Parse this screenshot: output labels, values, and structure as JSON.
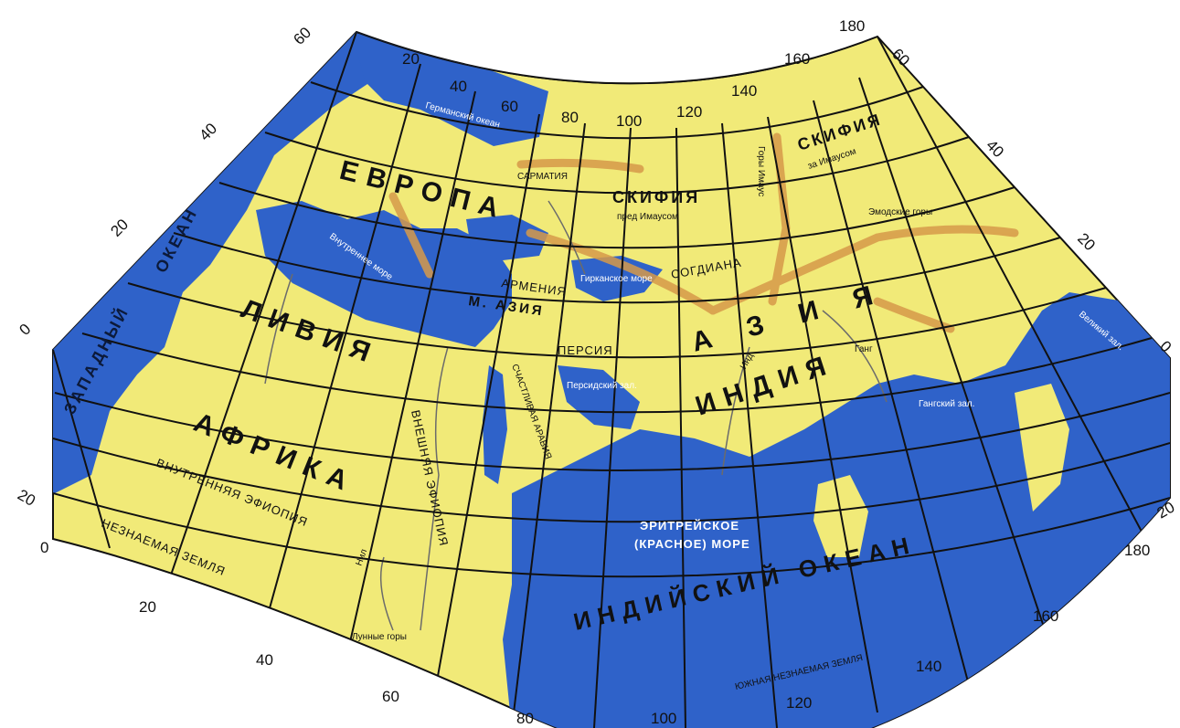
{
  "colors": {
    "land": "#f1ea78",
    "sea": "#2f62c9",
    "mountains": "#d69a4a",
    "rivers": "#6b6b6b",
    "grid": "#111111"
  },
  "scale": {
    "lon_top": [
      "20",
      "40",
      "60",
      "80",
      "100",
      "120",
      "140",
      "160",
      "180"
    ],
    "lon_bottom": [
      "0",
      "20",
      "40",
      "60",
      "80",
      "100",
      "120",
      "140",
      "160",
      "180"
    ],
    "lat_left": [
      "60",
      "40",
      "20",
      "0",
      "20"
    ],
    "lat_right": [
      "60",
      "40",
      "20",
      "0",
      "20"
    ]
  },
  "regions": {
    "europe": "ЕВРОПА",
    "libya": "ЛИВИЯ",
    "africa": "АФРИКА",
    "asia": "АЗИЯ",
    "india": "ИНДИЯ",
    "scythia1": "СКИФИЯ",
    "scythia1_sub": "пред Имаусом",
    "scythia2": "СКИФИЯ",
    "scythia2_sub": "за Имаусом",
    "sarmatia": "САРМАТИЯ",
    "armenia": "АРМЕНИЯ",
    "sogdiana": "СОГДИАНА",
    "persia": "ПЕРСИЯ",
    "asia_minor": "М. АЗИЯ",
    "happy_arabia": "СЧАСТЛИВАЯ АРАВИЯ",
    "inner_ethiopia": "ВНУТРЕННЯЯ ЭФИОПИЯ",
    "unknown_land_w": "НЕЗНАЕМАЯ ЗЕМЛЯ",
    "unknown_land_s": "ЮЖНАЯ НЕЗНАЕМАЯ ЗЕМЛЯ",
    "outer_ethiopia": "ВНЕШНЯЯ ЭФИОПИЯ"
  },
  "waters": {
    "western_ocean_1": "ЗАПАДНЫЙ",
    "western_ocean_2": "ОКЕАН",
    "indian_ocean": "ИНДИЙСКИЙ ОКЕАН",
    "erythrean_1": "ЭРИТРЕЙСКОЕ",
    "erythrean_2": "(КРАСНОЕ) МОРЕ",
    "med_sea": "Внутреннее море",
    "caspian": "Гирканское море",
    "persian_gulf": "Персидский зал.",
    "gangetic_gulf": "Гангский зал.",
    "great_gulf": "Великий зал.",
    "german_ocean": "Германский океан"
  },
  "features": {
    "imaus": "Горы Имаус",
    "emod": "Эмодские горы",
    "moon": "Лунные горы",
    "gang": "Ганг",
    "ind": "Инд",
    "nile": "Нил"
  }
}
